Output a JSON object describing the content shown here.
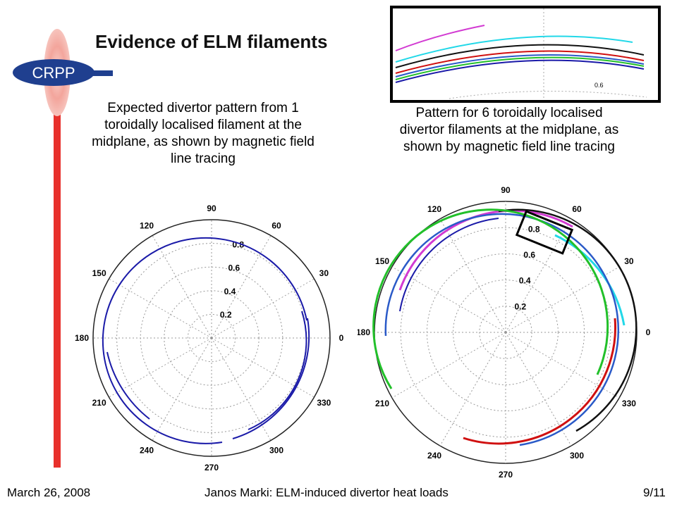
{
  "logo": {
    "text": "CRPP"
  },
  "title": "Evidence of ELM filaments",
  "descriptions": {
    "left": "Expected divertor pattern from 1 toroidally localised filament at the midplane, as shown by magnetic field line tracing",
    "right": "Pattern for 6 toroidally localised divertor filaments at the midplane, as shown by magnetic field line tracing"
  },
  "inset": {
    "radial_label": "0.6"
  },
  "polar": {
    "angle_labels": [
      "0",
      "30",
      "60",
      "90",
      "120",
      "150",
      "180",
      "210",
      "240",
      "270",
      "300",
      "330"
    ],
    "radius_labels": [
      "0.2",
      "0.4",
      "0.6",
      "0.8"
    ]
  },
  "footer": {
    "date": "March 26, 2008",
    "author": "Janos Marki: ELM-induced divertor heat loads",
    "page": "9/11"
  },
  "colors": {
    "logo_blue": "#1f3f8f",
    "logo_red": "#e8302c",
    "filament_left": "#1a1aa8",
    "filament_cyan": "#22d8e8",
    "filament_magenta": "#d23ad2",
    "filament_black": "#111111",
    "filament_red": "#d01010",
    "filament_green": "#22c02a",
    "filament_blue": "#2a5ac8"
  }
}
